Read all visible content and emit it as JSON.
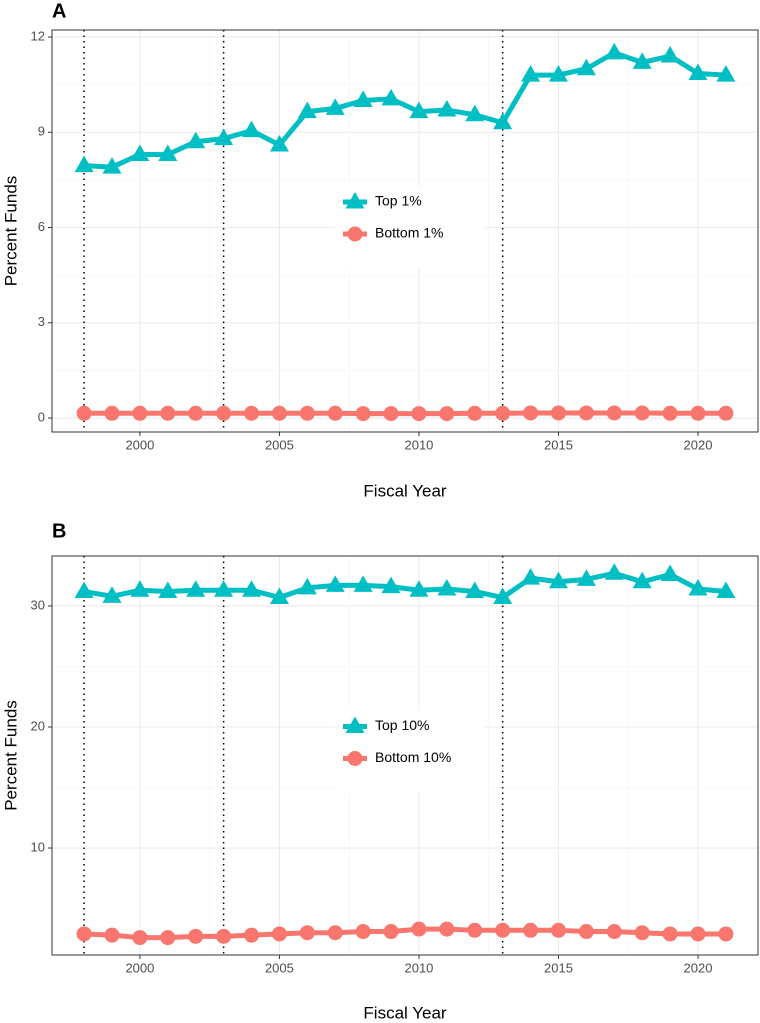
{
  "chart_data": [
    {
      "type": "line",
      "panel": "A",
      "xlabel": "Fiscal Year",
      "ylabel": "Percent Funds",
      "x": [
        1998,
        1999,
        2000,
        2001,
        2002,
        2003,
        2004,
        2005,
        2006,
        2007,
        2008,
        2009,
        2010,
        2011,
        2012,
        2013,
        2014,
        2015,
        2016,
        2017,
        2018,
        2019,
        2020,
        2021
      ],
      "series": [
        {
          "name": "Top 1%",
          "color": "#00BFC4",
          "marker": "triangle",
          "values": [
            7.95,
            7.9,
            8.3,
            8.3,
            8.7,
            8.8,
            9.05,
            8.6,
            9.65,
            9.75,
            10.0,
            10.05,
            9.65,
            9.7,
            9.55,
            9.3,
            10.8,
            10.8,
            11.0,
            11.5,
            11.2,
            11.4,
            10.85,
            10.8
          ]
        },
        {
          "name": "Bottom 1%",
          "color": "#F8766D",
          "marker": "circle",
          "values": [
            0.15,
            0.15,
            0.15,
            0.15,
            0.15,
            0.15,
            0.15,
            0.15,
            0.15,
            0.15,
            0.14,
            0.14,
            0.14,
            0.14,
            0.15,
            0.15,
            0.16,
            0.16,
            0.16,
            0.16,
            0.16,
            0.15,
            0.15,
            0.15
          ]
        }
      ],
      "xlim": [
        1996.85,
        2022.15
      ],
      "xticks": [
        2000,
        2005,
        2010,
        2015,
        2020
      ],
      "ylim": [
        -0.44,
        12.22
      ],
      "yticks": [
        0,
        3,
        6,
        9,
        12
      ],
      "vlines": [
        1998,
        2003,
        2013
      ],
      "grid": true,
      "legend": "center"
    },
    {
      "type": "line",
      "panel": "B",
      "xlabel": "Fiscal Year",
      "ylabel": "Percent Funds",
      "x": [
        1998,
        1999,
        2000,
        2001,
        2002,
        2003,
        2004,
        2005,
        2006,
        2007,
        2008,
        2009,
        2010,
        2011,
        2012,
        2013,
        2014,
        2015,
        2016,
        2017,
        2018,
        2019,
        2020,
        2021
      ],
      "series": [
        {
          "name": "Top 10%",
          "color": "#00BFC4",
          "marker": "triangle",
          "values": [
            31.2,
            30.8,
            31.3,
            31.2,
            31.3,
            31.3,
            31.3,
            30.7,
            31.5,
            31.7,
            31.7,
            31.6,
            31.3,
            31.4,
            31.2,
            30.7,
            32.3,
            32.0,
            32.2,
            32.7,
            32.0,
            32.6,
            31.4,
            31.2
          ]
        },
        {
          "name": "Bottom 10%",
          "color": "#F8766D",
          "marker": "circle",
          "values": [
            2.9,
            2.8,
            2.6,
            2.6,
            2.7,
            2.7,
            2.8,
            2.9,
            3.0,
            3.0,
            3.1,
            3.1,
            3.3,
            3.3,
            3.2,
            3.2,
            3.2,
            3.2,
            3.1,
            3.1,
            3.0,
            2.9,
            2.9,
            2.9
          ]
        }
      ],
      "xlim": [
        1996.85,
        2022.15
      ],
      "xticks": [
        2000,
        2005,
        2010,
        2015,
        2020
      ],
      "ylim": [
        1.16,
        34.13
      ],
      "yticks": [
        10,
        20,
        30
      ],
      "vlines": [
        1998,
        2003,
        2013
      ],
      "grid": true,
      "legend": "center"
    }
  ]
}
